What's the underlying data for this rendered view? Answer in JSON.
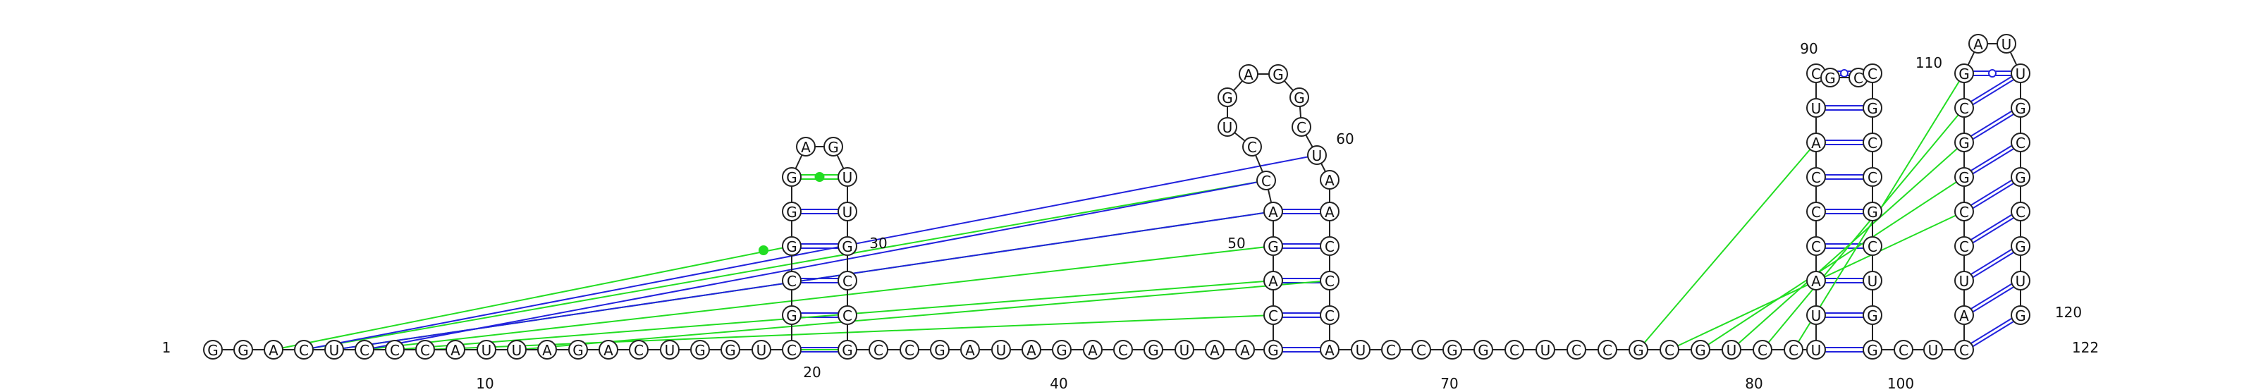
{
  "diagram": {
    "type": "rna-secondary-structure-arc-layout",
    "length": 122,
    "colors": {
      "backbone": "#222222",
      "canonical_pair": "#2222dd",
      "wobble_pair": "#2222dd",
      "tertiary_interaction": "#22dd22"
    },
    "sequence": [
      "G",
      "G",
      "A",
      "C",
      "U",
      "C",
      "C",
      "C",
      "A",
      "U",
      "U",
      "A",
      "G",
      "A",
      "C",
      "U",
      "G",
      "G",
      "U",
      "C",
      "G",
      "C",
      "G",
      "G",
      "G",
      "A",
      "G",
      "U",
      "U",
      "G",
      "C",
      "C",
      "G",
      "C",
      "C",
      "G",
      "A",
      "U",
      "A",
      "G",
      "A",
      "C",
      "G",
      "U",
      "A",
      "A",
      "G",
      "C",
      "A",
      "G",
      "A",
      "C",
      "C",
      "U",
      "G",
      "A",
      "G",
      "G",
      "C",
      "U",
      "A",
      "A",
      "C",
      "C",
      "C",
      "A",
      "U",
      "C",
      "C",
      "G",
      "G",
      "C",
      "U",
      "C",
      "C",
      "G",
      "C",
      "G",
      "U",
      "C",
      "C",
      "U",
      "U",
      "A",
      "C",
      "C",
      "C",
      "A",
      "U",
      "C",
      "G",
      "C",
      "C",
      "G",
      "C",
      "C",
      "G",
      "C",
      "U",
      "G",
      "G",
      "C",
      "U",
      "C",
      "A",
      "U",
      "C",
      "C",
      "G",
      "G",
      "C",
      "G",
      "A",
      "U",
      "U",
      "G",
      "C",
      "G",
      "C",
      "G",
      "U",
      "G"
    ],
    "position_labels": [
      "1",
      "10",
      "20",
      "30",
      "40",
      "50",
      "60",
      "70",
      "80",
      "90",
      "100",
      "110",
      "120",
      "122"
    ]
  }
}
